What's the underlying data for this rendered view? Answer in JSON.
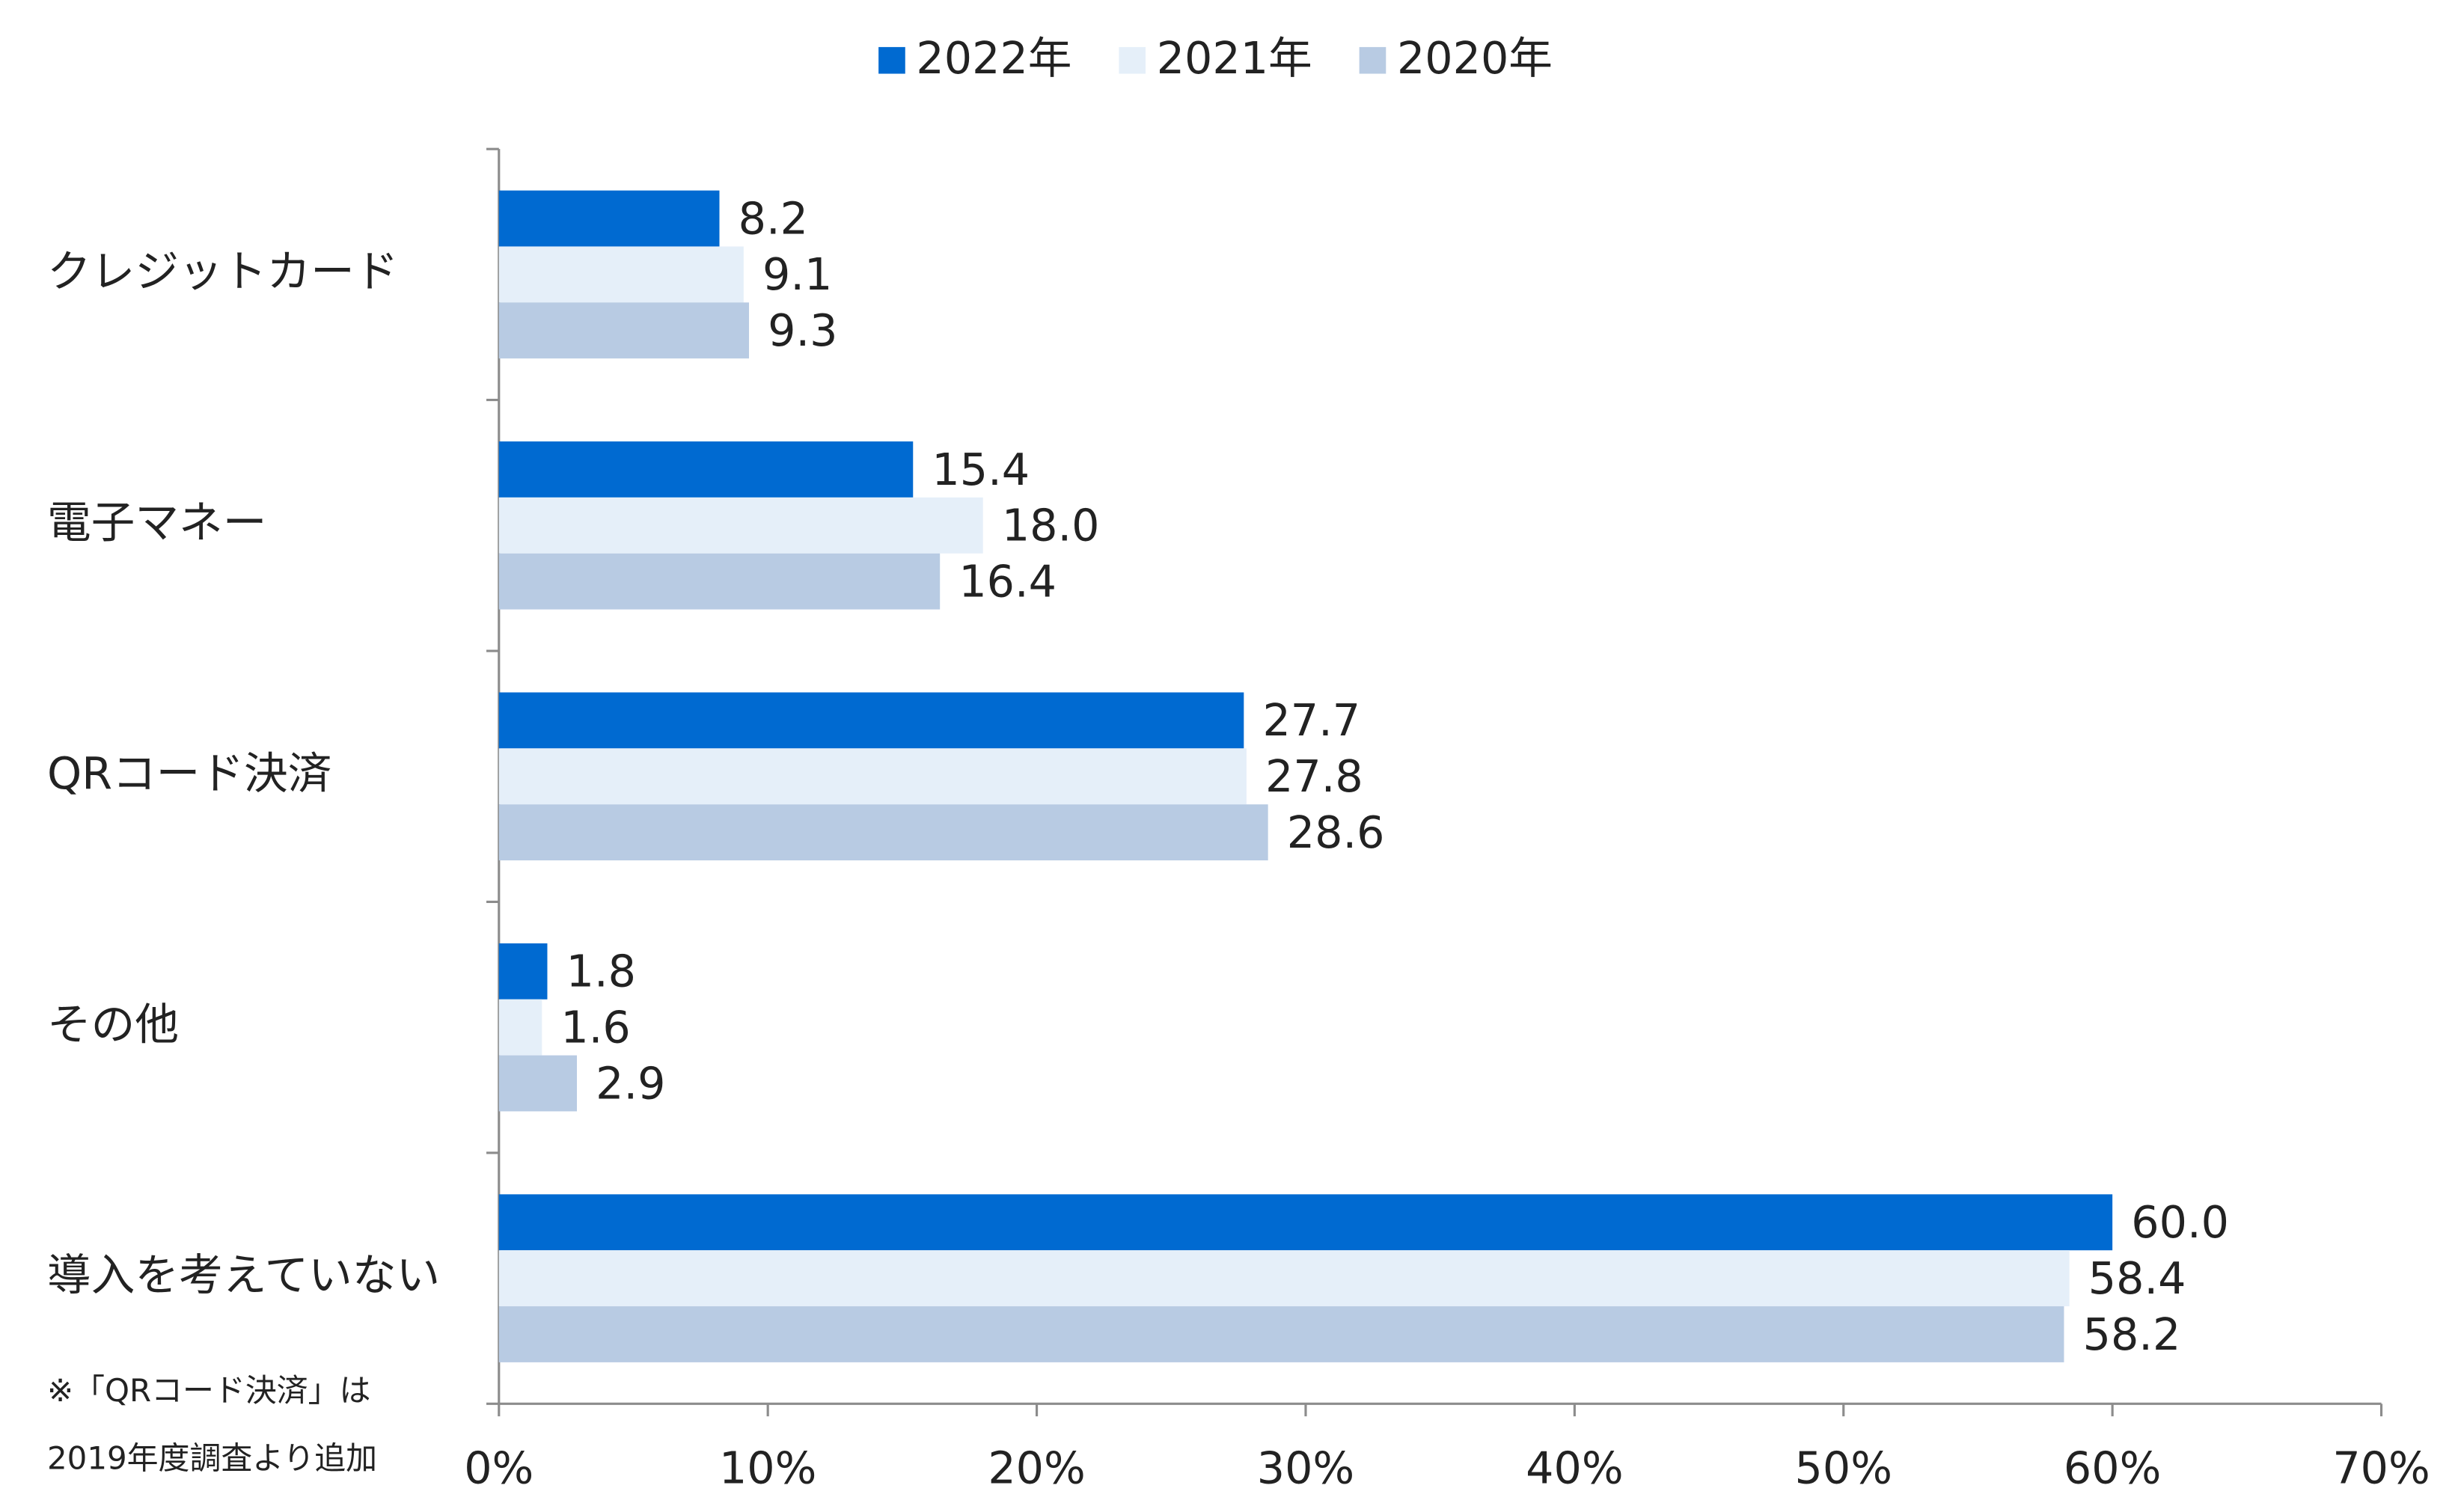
{
  "chart_data": {
    "type": "hbar",
    "categories": [
      "クレジットカード",
      "電子マネー",
      "QRコード決済",
      "その他",
      "導入を考えていない"
    ],
    "series": [
      {
        "name": "2022年",
        "color": "#006ad1",
        "values": [
          8.2,
          15.4,
          27.7,
          1.8,
          60.0
        ],
        "value_labels": [
          "8.2",
          "15.4",
          "27.7",
          "1.8",
          "60.0"
        ]
      },
      {
        "name": "2021年",
        "color": "#e5eff9",
        "values": [
          9.1,
          18.0,
          27.8,
          1.6,
          58.4
        ],
        "value_labels": [
          "9.1",
          "18.0",
          "27.8",
          "1.6",
          "58.4"
        ]
      },
      {
        "name": "2020年",
        "color": "#b8cbe3",
        "values": [
          9.3,
          16.4,
          28.6,
          2.9,
          58.2
        ],
        "value_labels": [
          "9.3",
          "16.4",
          "28.6",
          "2.9",
          "58.2"
        ]
      }
    ],
    "xlim": [
      0,
      70
    ],
    "xticks": [
      {
        "value": 0,
        "label": "0%"
      },
      {
        "value": 10,
        "label": "10%"
      },
      {
        "value": 20,
        "label": "20%"
      },
      {
        "value": 30,
        "label": "30%"
      },
      {
        "value": 40,
        "label": "40%"
      },
      {
        "value": 50,
        "label": "50%"
      },
      {
        "value": 60,
        "label": "60%"
      },
      {
        "value": 70,
        "label": "70%"
      }
    ],
    "annotations": [
      "※「QRコード決済」は",
      "2019年度調査より追加"
    ],
    "legend": "top"
  }
}
